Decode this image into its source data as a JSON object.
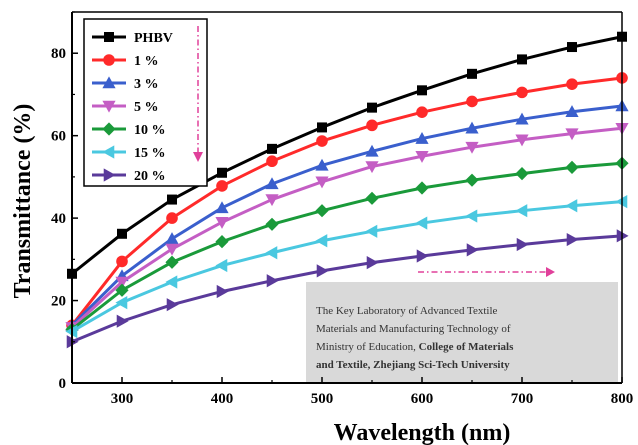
{
  "chart_data": {
    "type": "line",
    "xlabel": "Wavelength (nm)",
    "ylabel": "Transmittance (%)",
    "xlim": [
      250,
      800
    ],
    "ylim": [
      0,
      90
    ],
    "x_ticks": [
      300,
      400,
      500,
      600,
      700,
      800
    ],
    "y_ticks": [
      0,
      20,
      40,
      60,
      80
    ],
    "x": [
      250,
      300,
      350,
      400,
      450,
      500,
      550,
      600,
      650,
      700,
      750,
      800
    ],
    "legend_position": "top-left",
    "series": [
      {
        "name": "PHBV",
        "color": "#000000",
        "marker": "square",
        "values": [
          26.5,
          36.2,
          44.5,
          51.0,
          56.8,
          62.0,
          66.8,
          71.0,
          75.0,
          78.5,
          81.5,
          84.0
        ]
      },
      {
        "name": "1 %",
        "color": "#ff2a2a",
        "marker": "circle",
        "values": [
          14.0,
          29.5,
          40.0,
          47.8,
          53.8,
          58.7,
          62.5,
          65.7,
          68.3,
          70.5,
          72.5,
          74.0
        ]
      },
      {
        "name": "3 %",
        "color": "#3a5fcd",
        "marker": "triangle-up",
        "values": [
          14.0,
          26.0,
          35.0,
          42.5,
          48.3,
          52.8,
          56.2,
          59.3,
          61.8,
          64.0,
          65.8,
          67.2
        ]
      },
      {
        "name": "5 %",
        "color": "#c45ec4",
        "marker": "triangle-down",
        "values": [
          13.5,
          24.5,
          32.5,
          39.0,
          44.5,
          48.8,
          52.5,
          55.0,
          57.2,
          59.0,
          60.5,
          61.8
        ]
      },
      {
        "name": "10 %",
        "color": "#1a9a3a",
        "marker": "diamond",
        "values": [
          13.0,
          22.5,
          29.3,
          34.3,
          38.5,
          41.8,
          44.8,
          47.3,
          49.2,
          50.8,
          52.3,
          53.3
        ]
      },
      {
        "name": "15 %",
        "color": "#4ac8e0",
        "marker": "triangle-left",
        "values": [
          12.5,
          19.5,
          24.5,
          28.5,
          31.6,
          34.5,
          36.8,
          38.8,
          40.5,
          41.8,
          43.0,
          44.0
        ]
      },
      {
        "name": "20 %",
        "color": "#5a3a9a",
        "marker": "triangle-right",
        "values": [
          10.0,
          15.0,
          19.0,
          22.2,
          24.8,
          27.2,
          29.2,
          30.8,
          32.3,
          33.6,
          34.8,
          35.7
        ]
      }
    ]
  },
  "inset": {
    "line1": "The Key Laboratory of Advanced Textile",
    "line2": "Materials and Manufacturing Technology of",
    "line3_normal": "Ministry of Education,",
    "line3_bold": "College of Materials",
    "line4": "and Textile, Zhejiang Sci-Tech University"
  },
  "colors": {
    "arrow": "#e0409a",
    "inset_background": "#d9d9d9"
  }
}
